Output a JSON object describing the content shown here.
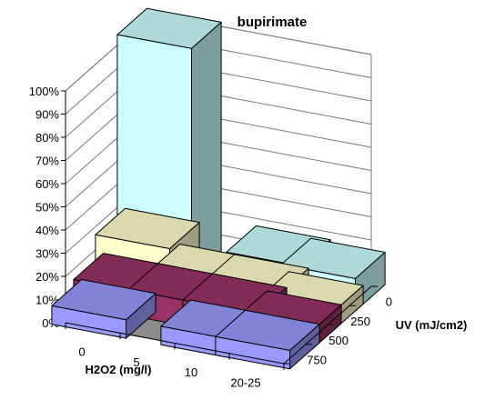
{
  "chart_data": {
    "type": "bar",
    "subtype": "3d-column",
    "title": "bupirimate",
    "xlabel": "H2O2 (mg/l)",
    "zlabel": "UV (mJ/cm2)",
    "ylabel": "",
    "x_categories": [
      "0",
      "5",
      "10",
      "20-25"
    ],
    "z_categories": [
      "0",
      "250",
      "500",
      "750"
    ],
    "ylim": [
      0,
      100
    ],
    "y_ticks": [
      "0%",
      "10%",
      "20%",
      "30%",
      "40%",
      "50%",
      "60%",
      "70%",
      "80%",
      "90%",
      "100%"
    ],
    "grid": true,
    "legend": "none",
    "series": [
      {
        "uv": "0",
        "color": "#ccffff",
        "values": [
          100,
          null,
          15,
          14
        ]
      },
      {
        "uv": "250",
        "color": "#ffffcc",
        "values": [
          22,
          11,
          11,
          8
        ]
      },
      {
        "uv": "500",
        "color": "#993366",
        "values": [
          11,
          11,
          11,
          8
        ]
      },
      {
        "uv": "750",
        "color": "#9999ff",
        "values": [
          8,
          null,
          8,
          8
        ]
      }
    ]
  }
}
